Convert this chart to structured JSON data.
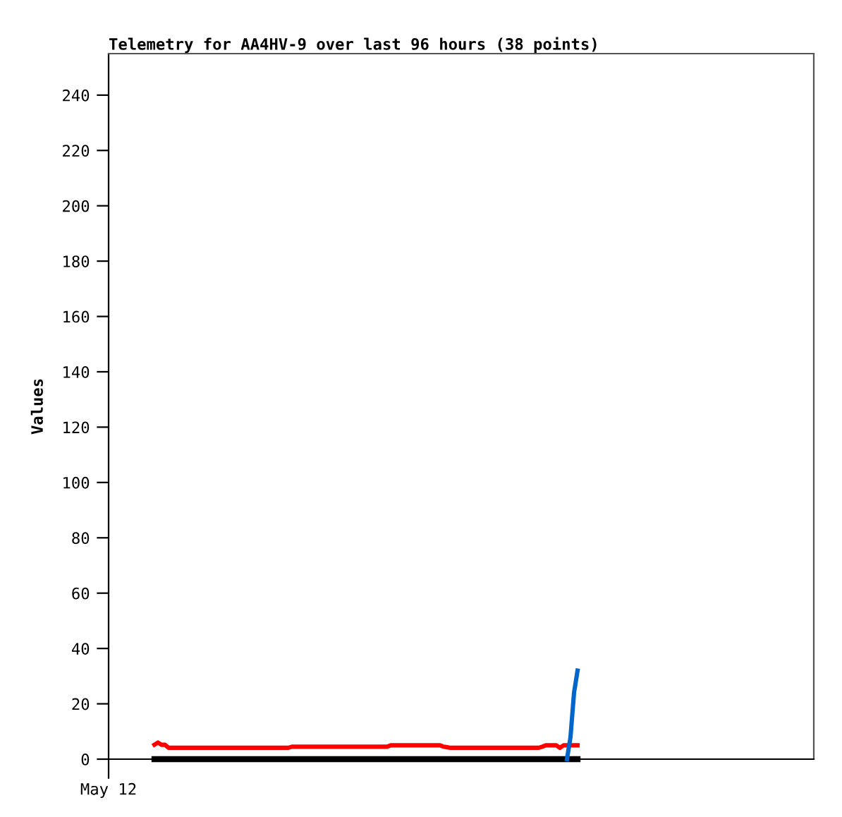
{
  "chart_data": {
    "type": "line",
    "title": "Telemetry for AA4HV-9 over last 96 hours (38 points)",
    "ylabel": "Values",
    "categories": [
      "May 12",
      null,
      null,
      null,
      null,
      null,
      null,
      null,
      null,
      null,
      null,
      null,
      null,
      null,
      null,
      null,
      null,
      null,
      null,
      null,
      null,
      null,
      null,
      null,
      null,
      null,
      null,
      null,
      null,
      null,
      null,
      null,
      null,
      null,
      null,
      null,
      null,
      null,
      null,
      null,
      null,
      null,
      null,
      null,
      null,
      null,
      null,
      null,
      null,
      null,
      null,
      null,
      null,
      null,
      null,
      null,
      null,
      null,
      null,
      null,
      null,
      null,
      null,
      null,
      null,
      null,
      null,
      null,
      null,
      null,
      null,
      null,
      null,
      null,
      null,
      null,
      null,
      null,
      null,
      null,
      null,
      null,
      null,
      null,
      null,
      null,
      null,
      null,
      null,
      null,
      null,
      null,
      null,
      null,
      null,
      null,
      null,
      null,
      null,
      null,
      null,
      null,
      null,
      null,
      null,
      null,
      null,
      null,
      null,
      null,
      null,
      null,
      null,
      null,
      null,
      null,
      null,
      null,
      null,
      null,
      null,
      null,
      null,
      null,
      null,
      null,
      null,
      null,
      null,
      null,
      null,
      null,
      null,
      null,
      null,
      null,
      null,
      null,
      null,
      null,
      null,
      null,
      null,
      null,
      null,
      null,
      null,
      null,
      null,
      null,
      null,
      null,
      null,
      null,
      null,
      null,
      null,
      null,
      null,
      null,
      null,
      null,
      null,
      null,
      null,
      null,
      null,
      null,
      null,
      null,
      null,
      null,
      null,
      null,
      null,
      null,
      null,
      null,
      null,
      null,
      null,
      null,
      null,
      null,
      null,
      null,
      null,
      null,
      null,
      null,
      null,
      null,
      null,
      null,
      null,
      null,
      null,
      null,
      null,
      null,
      null
    ],
    "ylim": [
      0,
      255
    ],
    "yticks": [
      0,
      20,
      40,
      60,
      80,
      100,
      120,
      140,
      160,
      180,
      200,
      220,
      240
    ],
    "marker": "none",
    "line_style": "solid",
    "series": [
      {
        "color": "#000000",
        "values": [
          null,
          null,
          null,
          null,
          null,
          null,
          null,
          null,
          null,
          null,
          null,
          null,
          null,
          0,
          0,
          0,
          0,
          0,
          0,
          0,
          0,
          0,
          0,
          0,
          0,
          0,
          0,
          0,
          0,
          0,
          0,
          0,
          0,
          0,
          0,
          0,
          0,
          0,
          0,
          0,
          0,
          0,
          0,
          0,
          0,
          0,
          0,
          0,
          0,
          0,
          0,
          0,
          0,
          0,
          0,
          0,
          0,
          0,
          0,
          0,
          0,
          0,
          0,
          0,
          0,
          0,
          0,
          0,
          0,
          0,
          0,
          0,
          0,
          0,
          0,
          0,
          0,
          0,
          0,
          0,
          0,
          0,
          0,
          0,
          0,
          0,
          0,
          0,
          0,
          0,
          0,
          0,
          0,
          0,
          0,
          0,
          0,
          0,
          0,
          0,
          0,
          0,
          0,
          0,
          0,
          0,
          0,
          0,
          0,
          0,
          0,
          0,
          0,
          0,
          0,
          0,
          0,
          0,
          0,
          0,
          0,
          0,
          0,
          0,
          0,
          0,
          0,
          0,
          0,
          0,
          0,
          0,
          0,
          0,
          null,
          null,
          null,
          null,
          null,
          null,
          null,
          null,
          null,
          null,
          null,
          null,
          null,
          null,
          null,
          null,
          null,
          null,
          null,
          null,
          null,
          null,
          null,
          null,
          null,
          null,
          null,
          null,
          null,
          null,
          null,
          null,
          null,
          null,
          null,
          null,
          null,
          null,
          null,
          null,
          null,
          null,
          null,
          null,
          null,
          null,
          null,
          null,
          null,
          null,
          null,
          null,
          null,
          null,
          null,
          null,
          null,
          null,
          null,
          null,
          null,
          null,
          null,
          null,
          null,
          null,
          null
        ]
      },
      {
        "color": "#ff0000",
        "values": [
          null,
          null,
          null,
          null,
          null,
          null,
          null,
          null,
          null,
          null,
          null,
          null,
          null,
          5.2,
          6,
          5.2,
          5.2,
          4.1,
          4.1,
          4.1,
          4.1,
          4.1,
          4.1,
          4.1,
          4.1,
          4.1,
          4.1,
          4.1,
          4.1,
          4.1,
          4.1,
          4.1,
          4.1,
          4.1,
          4.1,
          4.1,
          4.1,
          4.1,
          4.1,
          4.1,
          4.1,
          4.1,
          4.1,
          4.1,
          4.1,
          4.1,
          4.1,
          4.1,
          4.1,
          4.1,
          4.1,
          4.1,
          4.5,
          4.5,
          4.5,
          4.5,
          4.5,
          4.5,
          4.5,
          4.5,
          4.5,
          4.5,
          4.5,
          4.5,
          4.5,
          4.5,
          4.5,
          4.5,
          4.5,
          4.5,
          4.5,
          4.5,
          4.5,
          4.5,
          4.5,
          4.5,
          4.5,
          4.5,
          4.5,
          4.5,
          5,
          5,
          5,
          5,
          5,
          5,
          5,
          5,
          5,
          5,
          5,
          5,
          5,
          5,
          5,
          4.5,
          4.3,
          4.1,
          4.1,
          4.1,
          4.1,
          4.1,
          4.1,
          4.1,
          4.1,
          4.1,
          4.1,
          4.1,
          4.1,
          4.1,
          4.1,
          4.1,
          4.1,
          4.1,
          4.1,
          4.1,
          4.1,
          4.1,
          4.1,
          4.1,
          4.1,
          4.1,
          4.1,
          4.5,
          5,
          5,
          5,
          5,
          4.1,
          5,
          5,
          5,
          5,
          5,
          null,
          null,
          null,
          null,
          null,
          null,
          null,
          null,
          null,
          null,
          null,
          null,
          null,
          null,
          null,
          null,
          null,
          null,
          null,
          null,
          null,
          null,
          null,
          null,
          null,
          null,
          null,
          null,
          null,
          null,
          null,
          null,
          null,
          null,
          null,
          null,
          null,
          null,
          null,
          null,
          null,
          null,
          null,
          null,
          null,
          null,
          null,
          null,
          null,
          null,
          null,
          null,
          null,
          null,
          null,
          null,
          null,
          null,
          null,
          null,
          null,
          null,
          null,
          null,
          null,
          null,
          null
        ]
      },
      {
        "color": "#0066cc",
        "values": [
          null,
          null,
          null,
          null,
          null,
          null,
          null,
          null,
          null,
          null,
          null,
          null,
          null,
          null,
          null,
          null,
          null,
          null,
          null,
          null,
          null,
          null,
          null,
          null,
          null,
          null,
          null,
          null,
          null,
          null,
          null,
          null,
          null,
          null,
          null,
          null,
          null,
          null,
          null,
          null,
          null,
          null,
          null,
          null,
          null,
          null,
          null,
          null,
          null,
          null,
          null,
          null,
          null,
          null,
          null,
          null,
          null,
          null,
          null,
          null,
          null,
          null,
          null,
          null,
          null,
          null,
          null,
          null,
          null,
          null,
          null,
          null,
          null,
          null,
          null,
          null,
          null,
          null,
          null,
          null,
          null,
          null,
          null,
          null,
          null,
          null,
          null,
          null,
          null,
          null,
          null,
          null,
          null,
          null,
          null,
          null,
          null,
          null,
          null,
          null,
          null,
          null,
          null,
          null,
          null,
          null,
          null,
          null,
          null,
          null,
          null,
          null,
          null,
          null,
          null,
          null,
          null,
          null,
          null,
          null,
          null,
          null,
          null,
          null,
          null,
          null,
          null,
          null,
          null,
          null,
          0,
          8,
          24,
          32,
          null,
          null,
          null,
          null,
          null,
          null,
          null,
          null,
          null,
          null,
          null,
          null,
          null,
          null,
          null,
          null,
          null,
          null,
          null,
          null,
          null,
          null,
          null,
          null,
          null,
          null,
          null,
          null,
          null,
          null,
          null,
          null,
          null,
          null,
          null,
          null,
          null,
          null,
          null,
          null,
          null,
          null,
          null,
          null,
          null,
          null,
          null,
          null,
          null,
          null,
          null,
          null,
          null,
          null,
          null,
          null,
          null,
          null,
          null,
          null,
          null,
          null,
          null,
          null,
          null,
          null,
          null
        ]
      }
    ]
  }
}
